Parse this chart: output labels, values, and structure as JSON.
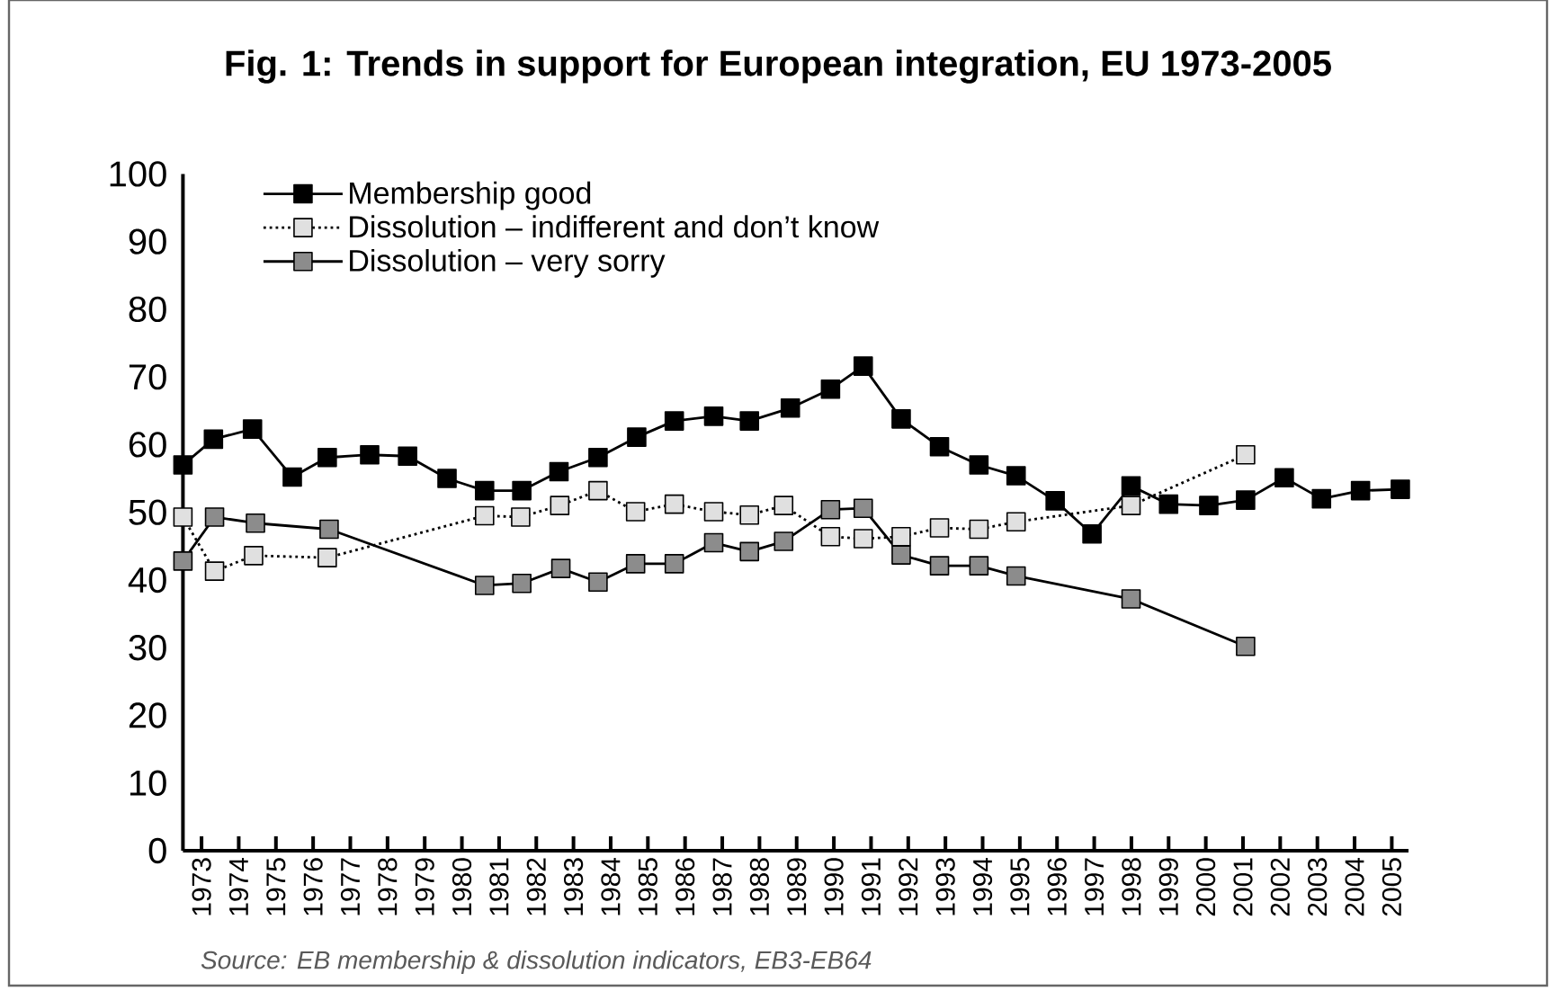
{
  "chart_data": {
    "type": "line",
    "title": "Fig. 1: Trends in support for European integration, EU 1973-2005",
    "annotations": [
      "Source: EB membership & dissolution indicators, EB3-EB64"
    ],
    "xlim": [
      1972.5,
      2005.45
    ],
    "ylim": [
      0,
      100
    ],
    "xticks": [
      1973,
      1974,
      1975,
      1976,
      1977,
      1978,
      1979,
      1980,
      1981,
      1982,
      1983,
      1984,
      1985,
      1986,
      1987,
      1988,
      1989,
      1990,
      1991,
      1992,
      1993,
      1994,
      1995,
      1996,
      1997,
      1998,
      1999,
      2000,
      2001,
      2002,
      2003,
      2004,
      2005
    ],
    "yticks": [
      0,
      10,
      20,
      30,
      40,
      50,
      60,
      70,
      80,
      90,
      100
    ],
    "grid": false,
    "legend": "top left",
    "marker": "square",
    "series": [
      {
        "name": "Membership good",
        "color": "#000000",
        "line_style": "solid",
        "x": [
          1972.5,
          1973.32,
          1974.37,
          1975.44,
          1976.38,
          1977.52,
          1978.54,
          1979.6,
          1980.61,
          1981.61,
          1982.61,
          1983.66,
          1984.7,
          1985.71,
          1986.77,
          1987.73,
          1988.83,
          1989.91,
          1990.79,
          1991.81,
          1992.84,
          1993.9,
          1994.9,
          1995.95,
          1996.94,
          1997.99,
          1999.0,
          2000.08,
          2001.07,
          2002.11,
          2003.11,
          2004.16,
          2005.23
        ],
        "values": [
          57.0,
          60.8,
          62.3,
          55.2,
          58.1,
          58.5,
          58.3,
          55.0,
          53.2,
          53.2,
          56.0,
          58.1,
          61.1,
          63.5,
          64.2,
          63.5,
          65.4,
          68.2,
          71.6,
          63.8,
          59.7,
          57.0,
          55.4,
          51.7,
          46.8,
          53.9,
          51.2,
          51.0,
          51.8,
          55.1,
          52.0,
          53.2,
          53.4
        ]
      },
      {
        "name": "Dissolution – indifferent and don’t know",
        "color": "#e0e0e0",
        "line_style": "dotted",
        "x": [
          1972.5,
          1973.35,
          1974.4,
          1976.38,
          1980.61,
          1981.58,
          1982.63,
          1983.66,
          1984.67,
          1985.71,
          1986.77,
          1987.73,
          1988.65,
          1989.91,
          1990.79,
          1991.81,
          1992.84,
          1993.9,
          1994.9,
          1997.99,
          2001.07
        ],
        "values": [
          49.3,
          41.3,
          43.6,
          43.3,
          49.5,
          49.3,
          51.0,
          53.2,
          50.1,
          51.2,
          50.1,
          49.6,
          51.0,
          46.4,
          46.1,
          46.4,
          47.7,
          47.5,
          48.6,
          51.0,
          58.5
        ]
      },
      {
        "name": "Dissolution – very sorry",
        "color": "#8c8c8c",
        "line_style": "solid",
        "x": [
          1972.5,
          1973.35,
          1974.45,
          1976.43,
          1980.61,
          1981.61,
          1982.66,
          1983.66,
          1984.67,
          1985.71,
          1986.77,
          1987.73,
          1988.65,
          1989.91,
          1990.79,
          1991.81,
          1992.84,
          1993.9,
          1994.9,
          1997.99,
          2001.07
        ],
        "values": [
          42.8,
          49.3,
          48.4,
          47.5,
          39.2,
          39.5,
          41.7,
          39.7,
          42.4,
          42.4,
          45.5,
          44.2,
          45.7,
          50.4,
          50.6,
          43.7,
          42.1,
          42.1,
          40.6,
          37.2,
          30.2
        ]
      }
    ]
  }
}
